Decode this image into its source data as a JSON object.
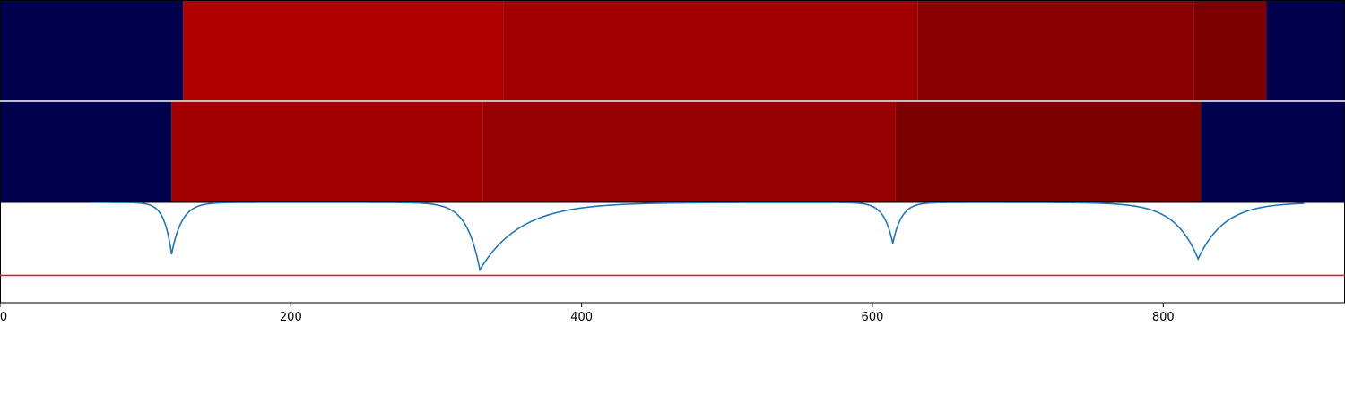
{
  "chart_data": {
    "type": "heatmap",
    "x_range": [
      0,
      925
    ],
    "x_ticks": [
      {
        "value": 0,
        "label": "0"
      },
      {
        "value": 200,
        "label": "200"
      },
      {
        "value": 400,
        "label": "400"
      },
      {
        "value": 600,
        "label": "600"
      },
      {
        "value": 800,
        "label": "800"
      }
    ],
    "tracks": [
      {
        "segments": [
          {
            "start": 0,
            "end": 126,
            "color": "#00004c"
          },
          {
            "start": 126,
            "end": 346,
            "color": "#b00000"
          },
          {
            "start": 346,
            "end": 631,
            "color": "#a20000"
          },
          {
            "start": 631,
            "end": 821,
            "color": "#8a0000"
          },
          {
            "start": 821,
            "end": 871,
            "color": "#7c0000"
          },
          {
            "start": 871,
            "end": 925,
            "color": "#00004c"
          }
        ]
      },
      {
        "segments": [
          {
            "start": 0,
            "end": 118,
            "color": "#00004c"
          },
          {
            "start": 118,
            "end": 332,
            "color": "#a20000"
          },
          {
            "start": 332,
            "end": 616,
            "color": "#960000"
          },
          {
            "start": 616,
            "end": 826,
            "color": "#7c0000"
          },
          {
            "start": 826,
            "end": 925,
            "color": "#00004c"
          }
        ]
      }
    ],
    "line_panel": {
      "y_range": [
        -0.1,
        1.0
      ],
      "threshold": {
        "value": 0.2,
        "color": "#d62728"
      },
      "line_color": "#1f77b4",
      "line_x_range": [
        62,
        897
      ],
      "baseline": 1.0,
      "dips": [
        {
          "center": 118,
          "depth": 0.57,
          "width_left": 5,
          "width_right": 7
        },
        {
          "center": 330,
          "depth": 0.74,
          "width_left": 9,
          "width_right": 28
        },
        {
          "center": 614,
          "depth": 0.45,
          "width_left": 6,
          "width_right": 6
        },
        {
          "center": 824,
          "depth": 0.62,
          "width_left": 16,
          "width_right": 18
        }
      ]
    }
  }
}
